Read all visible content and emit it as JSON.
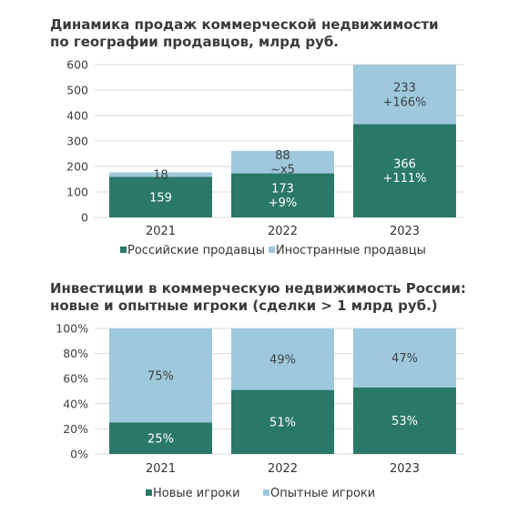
{
  "charts": [
    {
      "title": "Динамика продаж коммерческой недвижимости\nпо географии продавцов, млрд руб.",
      "chart_data": {
        "type": "bar",
        "stacked": true,
        "categories": [
          "2021",
          "2022",
          "2023"
        ],
        "series": [
          {
            "name": "Российские продавцы",
            "color": "#2a7868",
            "values": [
              159,
              173,
              366
            ],
            "labels": [
              "159",
              "173\n+9%",
              "366\n+111%"
            ]
          },
          {
            "name": "Иностранные продавцы",
            "color": "#9ec9dd",
            "values": [
              18,
              88,
              233
            ],
            "labels": [
              "18",
              "88\n~x5",
              "233\n+166%"
            ]
          }
        ],
        "yticks": [
          "0",
          "100",
          "200",
          "300",
          "400",
          "500",
          "600"
        ],
        "ylim": [
          0,
          600
        ],
        "grid": true,
        "legend": "bottom"
      }
    },
    {
      "title": "Инвестиции в коммерческую недвижимость России:\nновые и опытные игроки (сделки > 1 млрд руб.)",
      "chart_data": {
        "type": "bar",
        "stacked": true,
        "categories": [
          "2021",
          "2022",
          "2023"
        ],
        "series": [
          {
            "name": "Новые игроки",
            "color": "#2a7868",
            "values": [
              25,
              51,
              53
            ],
            "labels": [
              "25%",
              "51%",
              "53%"
            ]
          },
          {
            "name": "Опытные игроки",
            "color": "#9ec9dd",
            "values": [
              75,
              49,
              47
            ],
            "labels": [
              "75%",
              "49%",
              "47%"
            ]
          }
        ],
        "yticks": [
          "0%",
          "20%",
          "40%",
          "60%",
          "80%",
          "100%"
        ],
        "ylim": [
          0,
          100
        ],
        "grid": true,
        "legend": "bottom"
      }
    }
  ]
}
